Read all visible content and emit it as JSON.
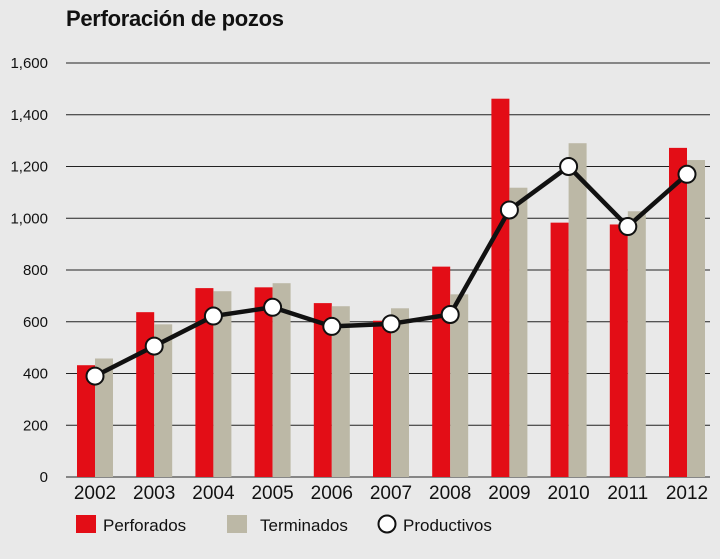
{
  "chart_data": {
    "type": "bar",
    "title": "Perforación de pozos",
    "xlabel": "",
    "ylabel": "",
    "ylim": [
      0,
      1600
    ],
    "yticks": [
      0,
      200,
      400,
      600,
      800,
      1000,
      1200,
      1400,
      1600
    ],
    "ytick_labels": [
      "0",
      "200",
      "400",
      "600",
      "800",
      "1,000",
      "1,200",
      "1,400",
      "1,600"
    ],
    "grid": true,
    "legend_position": "bottom",
    "categories": [
      "2002",
      "2003",
      "2004",
      "2005",
      "2006",
      "2007",
      "2008",
      "2009",
      "2010",
      "2011",
      "2012"
    ],
    "series": [
      {
        "name": "Perforados",
        "kind": "bar",
        "color": "#e30d16",
        "values": [
          432,
          637,
          730,
          733,
          672,
          604,
          813,
          1462,
          983,
          976,
          1272
        ]
      },
      {
        "name": "Terminados",
        "kind": "bar",
        "color": "#bcb8a6",
        "values": [
          458,
          590,
          718,
          749,
          660,
          652,
          706,
          1118,
          1290,
          1027,
          1225
        ]
      },
      {
        "name": "Productivos",
        "kind": "line",
        "color": "#111111",
        "values": [
          390,
          506,
          622,
          656,
          582,
          592,
          628,
          1032,
          1200,
          968,
          1170
        ]
      }
    ]
  }
}
